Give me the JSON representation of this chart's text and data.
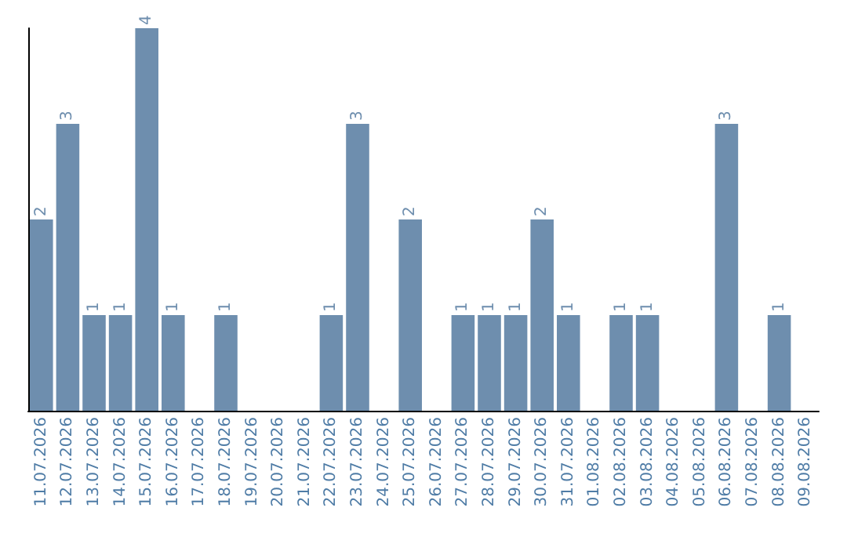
{
  "chart_data": {
    "type": "bar",
    "categories": [
      "11.07.2026",
      "12.07.2026",
      "13.07.2026",
      "14.07.2026",
      "15.07.2026",
      "16.07.2026",
      "17.07.2026",
      "18.07.2026",
      "19.07.2026",
      "20.07.2026",
      "21.07.2026",
      "22.07.2026",
      "23.07.2026",
      "24.07.2026",
      "25.07.2026",
      "26.07.2026",
      "27.07.2026",
      "28.07.2026",
      "29.07.2026",
      "30.07.2026",
      "31.07.2026",
      "01.08.2026",
      "02.08.2026",
      "03.08.2026",
      "04.08.2026",
      "05.08.2026",
      "06.08.2026",
      "07.08.2026",
      "08.08.2026",
      "09.08.2026"
    ],
    "values": [
      2,
      3,
      1,
      1,
      4,
      1,
      0,
      1,
      0,
      0,
      0,
      1,
      3,
      0,
      2,
      0,
      1,
      1,
      1,
      2,
      1,
      0,
      1,
      1,
      0,
      0,
      3,
      0,
      1,
      0
    ],
    "value_labels": [
      "2",
      "3",
      "1",
      "1",
      "4",
      "1",
      null,
      "1",
      null,
      null,
      null,
      "1",
      "3",
      null,
      "2",
      null,
      "1",
      "1",
      "1",
      "2",
      "1",
      null,
      "1",
      "1",
      null,
      null,
      "3",
      null,
      "1",
      null
    ],
    "color": "#6e8eae",
    "grid": false,
    "tick_labels": "x"
  }
}
